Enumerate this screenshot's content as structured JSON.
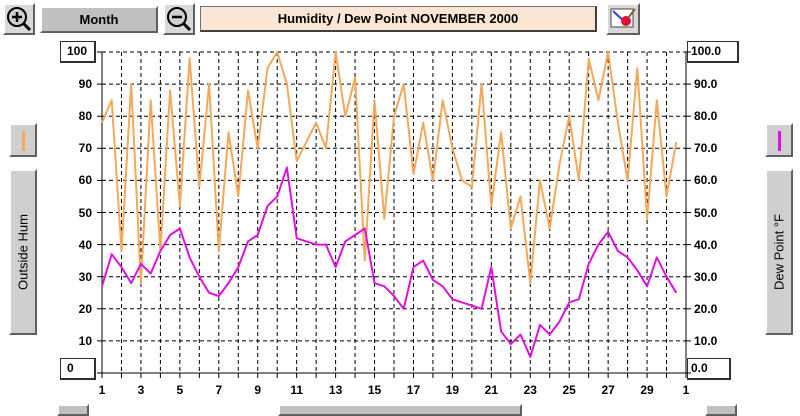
{
  "toolbar": {
    "zoom_in_symbol": "+",
    "zoom_out_symbol": "−",
    "period_label": "Month",
    "title": "Humidity  /  Dew Point  NOVEMBER 2000"
  },
  "left_axis": {
    "label": "Outside Hum",
    "top_value": "100",
    "bottom_value": "0",
    "ticks": [
      "90",
      "80",
      "70",
      "60",
      "50",
      "40",
      "30",
      "20",
      "10"
    ]
  },
  "right_axis": {
    "label": "Dew Point °F",
    "top_value": "100.0",
    "bottom_value": "0.0",
    "ticks": [
      "90.0",
      "80.0",
      "70.0",
      "60.0",
      "50.0",
      "40.0",
      "30.0",
      "20.0",
      "10.0"
    ]
  },
  "x_ticks": [
    "1",
    "3",
    "5",
    "7",
    "9",
    "11",
    "13",
    "15",
    "17",
    "19",
    "21",
    "23",
    "25",
    "27",
    "29",
    "1"
  ],
  "colors": {
    "humidity": "#f4a85a",
    "dew_point": "#e010e0",
    "title_bg": "#fae6d2"
  },
  "chart_data": {
    "type": "line",
    "title": "Humidity  /  Dew Point  NOVEMBER 2000",
    "xlabel": "",
    "ylabel": "Outside Hum",
    "ylabel_right": "Dew Point °F",
    "x": [
      1,
      1.5,
      2,
      2.5,
      3,
      3.5,
      4,
      4.5,
      5,
      5.5,
      6,
      6.5,
      7,
      7.5,
      8,
      8.5,
      9,
      9.5,
      10,
      10.5,
      11,
      11.5,
      12,
      12.5,
      13,
      13.5,
      14,
      14.5,
      15,
      15.5,
      16,
      16.5,
      17,
      17.5,
      18,
      18.5,
      19,
      19.5,
      20,
      20.5,
      21,
      21.5,
      22,
      22.5,
      23,
      23.5,
      24,
      24.5,
      25,
      25.5,
      26,
      26.5,
      27,
      27.5,
      28,
      28.5,
      29,
      29.5,
      30,
      30.5
    ],
    "ylim": [
      0,
      100
    ],
    "x_range": [
      1,
      31
    ],
    "series": [
      {
        "name": "Outside Hum",
        "axis": "left",
        "values": [
          78,
          85,
          38,
          90,
          28,
          85,
          38,
          88,
          52,
          98,
          58,
          90,
          38,
          75,
          55,
          88,
          70,
          95,
          100,
          90,
          66,
          72,
          78,
          70,
          100,
          80,
          92,
          35,
          85,
          48,
          80,
          90,
          62,
          78,
          60,
          85,
          70,
          60,
          58,
          90,
          52,
          75,
          45,
          55,
          28,
          60,
          45,
          65,
          80,
          60,
          98,
          85,
          100,
          78,
          60,
          95,
          48,
          85,
          55,
          72
        ]
      },
      {
        "name": "Dew Point °F",
        "axis": "right",
        "values": [
          27,
          37,
          33,
          28,
          34,
          31,
          38,
          43,
          45,
          36,
          30,
          25,
          24,
          28,
          33,
          41,
          43,
          52,
          55,
          64,
          42,
          41,
          40,
          40,
          33,
          41,
          43,
          45,
          28,
          27,
          24,
          20,
          33,
          35,
          29,
          27,
          23,
          22,
          21,
          20,
          33,
          13,
          9,
          12,
          5,
          15,
          12,
          16,
          22,
          23,
          34,
          40,
          44,
          38,
          36,
          32,
          27,
          36,
          30,
          25
        ]
      }
    ]
  }
}
